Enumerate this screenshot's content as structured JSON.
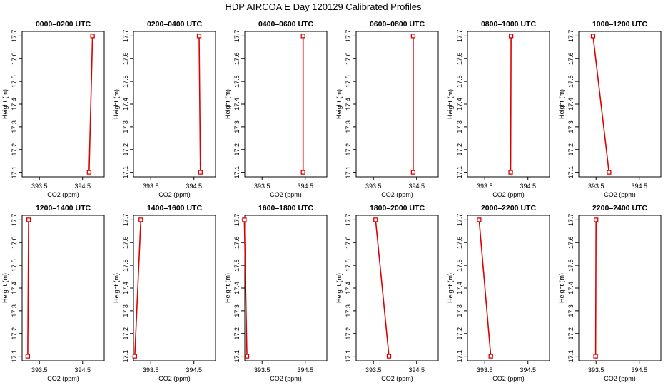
{
  "title": "HDP AIRCOA E  Day 120129  Calibrated Profiles",
  "colors": {
    "profile": "#dd0000",
    "frame": "#000000"
  },
  "axes": {
    "xlabel": "CO2 (ppm)",
    "ylabel": "Height (m)",
    "xlim": [
      393.1,
      395.0
    ],
    "ylim": [
      17.08,
      17.72
    ],
    "xticks": [
      393.5,
      394.5
    ],
    "yticks": [
      17.1,
      17.2,
      17.3,
      17.4,
      17.5,
      17.6,
      17.7
    ]
  },
  "chart_data": [
    {
      "type": "line",
      "title": "0000–0200 UTC",
      "xlabel": "CO2 (ppm)",
      "ylabel": "Height (m)",
      "points": [
        {
          "x": 394.73,
          "y": 17.7
        },
        {
          "x": 394.65,
          "y": 17.1
        }
      ]
    },
    {
      "type": "line",
      "title": "0200–0400 UTC",
      "xlabel": "CO2 (ppm)",
      "ylabel": "Height (m)",
      "points": [
        {
          "x": 394.62,
          "y": 17.7
        },
        {
          "x": 394.65,
          "y": 17.1
        }
      ]
    },
    {
      "type": "line",
      "title": "0400–0600 UTC",
      "xlabel": "CO2 (ppm)",
      "ylabel": "Height (m)",
      "points": [
        {
          "x": 394.45,
          "y": 17.7
        },
        {
          "x": 394.45,
          "y": 17.1
        }
      ]
    },
    {
      "type": "line",
      "title": "0600–0800 UTC",
      "xlabel": "CO2 (ppm)",
      "ylabel": "Height (m)",
      "points": [
        {
          "x": 394.42,
          "y": 17.7
        },
        {
          "x": 394.42,
          "y": 17.1
        }
      ]
    },
    {
      "type": "line",
      "title": "0800–1000 UTC",
      "xlabel": "CO2 (ppm)",
      "ylabel": "Height (m)",
      "points": [
        {
          "x": 394.11,
          "y": 17.7
        },
        {
          "x": 394.1,
          "y": 17.1
        }
      ]
    },
    {
      "type": "line",
      "title": "1000–1200 UTC",
      "xlabel": "CO2 (ppm)",
      "ylabel": "Height (m)",
      "points": [
        {
          "x": 393.43,
          "y": 17.7
        },
        {
          "x": 393.8,
          "y": 17.1
        }
      ]
    },
    {
      "type": "line",
      "title": "1200–1400 UTC",
      "xlabel": "CO2 (ppm)",
      "ylabel": "Height (m)",
      "points": [
        {
          "x": 393.25,
          "y": 17.7
        },
        {
          "x": 393.23,
          "y": 17.1
        }
      ]
    },
    {
      "type": "line",
      "title": "1400–1600 UTC",
      "xlabel": "CO2 (ppm)",
      "ylabel": "Height (m)",
      "points": [
        {
          "x": 393.27,
          "y": 17.7
        },
        {
          "x": 393.13,
          "y": 17.1
        }
      ]
    },
    {
      "type": "line",
      "title": "1600–1800 UTC",
      "xlabel": "CO2 (ppm)",
      "ylabel": "Height (m)",
      "points": [
        {
          "x": 393.09,
          "y": 17.7
        },
        {
          "x": 393.15,
          "y": 17.1
        }
      ]
    },
    {
      "type": "line",
      "title": "1800–2000 UTC",
      "xlabel": "CO2 (ppm)",
      "ylabel": "Height (m)",
      "points": [
        {
          "x": 393.55,
          "y": 17.7
        },
        {
          "x": 393.86,
          "y": 17.1
        }
      ]
    },
    {
      "type": "line",
      "title": "2000–2200 UTC",
      "xlabel": "CO2 (ppm)",
      "ylabel": "Height (m)",
      "points": [
        {
          "x": 393.37,
          "y": 17.7
        },
        {
          "x": 393.64,
          "y": 17.1
        }
      ]
    },
    {
      "type": "line",
      "title": "2200–2400 UTC",
      "xlabel": "CO2 (ppm)",
      "ylabel": "Height (m)",
      "points": [
        {
          "x": 393.5,
          "y": 17.7
        },
        {
          "x": 393.49,
          "y": 17.1
        }
      ]
    }
  ]
}
